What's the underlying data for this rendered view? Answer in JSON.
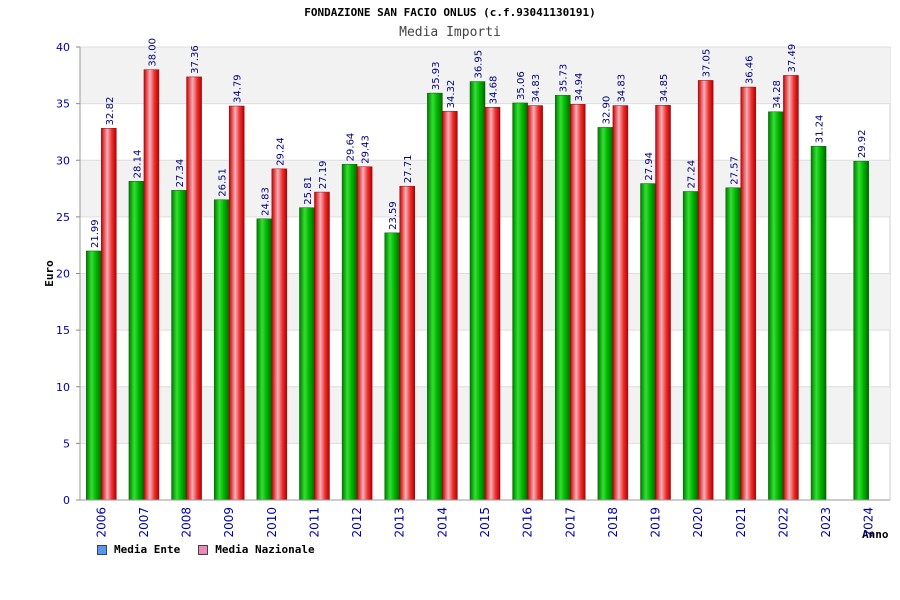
{
  "chart_data": {
    "type": "bar",
    "title": "FONDAZIONE SAN FACIO ONLUS (c.f.93041130191)",
    "subtitle": "Media Importi",
    "ylabel": "Euro",
    "xlabel": "Anno",
    "ylim": [
      0,
      40
    ],
    "yticks": [
      0,
      5,
      10,
      15,
      20,
      25,
      30,
      35,
      40
    ],
    "grid": true,
    "legend_position": "bottom-left",
    "categories": [
      "2006",
      "2007",
      "2008",
      "2009",
      "2010",
      "2011",
      "2012",
      "2013",
      "2014",
      "2015",
      "2016",
      "2017",
      "2018",
      "2019",
      "2020",
      "2021",
      "2022",
      "2023",
      "2024"
    ],
    "series": [
      {
        "name": "Media Ente",
        "color": "#00a000",
        "legend_color": "#5599ee",
        "values": [
          21.99,
          28.14,
          27.34,
          26.51,
          24.83,
          25.81,
          29.64,
          23.59,
          35.93,
          36.95,
          35.06,
          35.73,
          32.9,
          27.94,
          27.24,
          27.57,
          34.28,
          31.24,
          29.92
        ],
        "labels": [
          "21.99",
          "28.14",
          "27.34",
          "26.51",
          "24.83",
          "25.81",
          "29.64",
          "23.59",
          "35.93",
          "36.95",
          "35.06",
          "35.73",
          "32.90",
          "27.94",
          "27.24",
          "27.57",
          "34.28",
          "31.24",
          "29.92"
        ]
      },
      {
        "name": "Media Nazionale",
        "color": "#e02020",
        "legend_color": "#ee88bb",
        "values": [
          32.82,
          38.0,
          37.36,
          34.79,
          29.24,
          27.19,
          29.43,
          27.71,
          34.32,
          34.68,
          34.83,
          34.94,
          34.83,
          34.85,
          37.05,
          36.46,
          37.49,
          null,
          null
        ],
        "labels": [
          "32.82",
          "38.00",
          "37.36",
          "34.79",
          "29.24",
          "27.19",
          "29.43",
          "27.71",
          "34.32",
          "34.68",
          "34.83",
          "34.94",
          "34.83",
          "34.85",
          "37.05",
          "36.46",
          "37.49",
          "",
          ""
        ]
      }
    ]
  }
}
